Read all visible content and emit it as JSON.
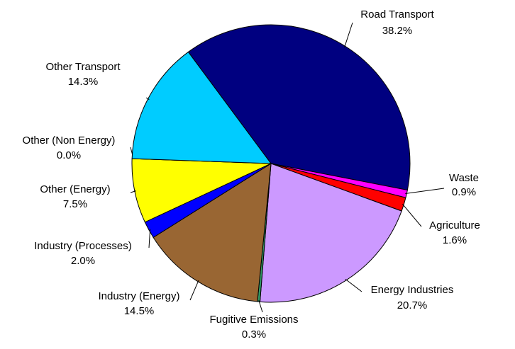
{
  "chart_data": {
    "type": "pie",
    "categories": [
      "Road Transport",
      "Waste",
      "Agriculture",
      "Energy Industries",
      "Fugitive Emissions",
      "Industry (Energy)",
      "Industry (Processes)",
      "Other (Energy)",
      "Other (Non Energy)",
      "Other Transport"
    ],
    "values": [
      38.2,
      0.9,
      1.6,
      20.7,
      0.3,
      14.5,
      2.0,
      7.5,
      0.0,
      14.3
    ],
    "value_labels": [
      "38.2%",
      "0.9%",
      "1.6%",
      "20.7%",
      "0.3%",
      "14.5%",
      "2.0%",
      "7.5%",
      "0.0%",
      "14.3%"
    ],
    "colors": [
      "#000080",
      "#ff00ff",
      "#ff0000",
      "#cc99ff",
      "#339966",
      "#996633",
      "#0000ff",
      "#ffff00",
      "#ff9900",
      "#00ccff"
    ]
  }
}
